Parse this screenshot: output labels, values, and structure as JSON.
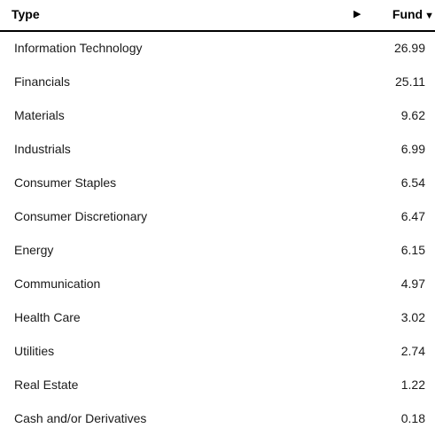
{
  "header": {
    "type_label": "Type",
    "expand_arrow": "▶",
    "fund_label": "Fund",
    "sort_icon": "▼"
  },
  "rows": [
    {
      "type": "Information Technology",
      "fund": "26.99"
    },
    {
      "type": "Financials",
      "fund": "25.11"
    },
    {
      "type": "Materials",
      "fund": "9.62"
    },
    {
      "type": "Industrials",
      "fund": "6.99"
    },
    {
      "type": "Consumer Staples",
      "fund": "6.54"
    },
    {
      "type": "Consumer Discretionary",
      "fund": "6.47"
    },
    {
      "type": "Energy",
      "fund": "6.15"
    },
    {
      "type": "Communication",
      "fund": "4.97"
    },
    {
      "type": "Health Care",
      "fund": "3.02"
    },
    {
      "type": "Utilities",
      "fund": "2.74"
    },
    {
      "type": "Real Estate",
      "fund": "1.22"
    },
    {
      "type": "Cash and/or Derivatives",
      "fund": "0.18"
    }
  ]
}
